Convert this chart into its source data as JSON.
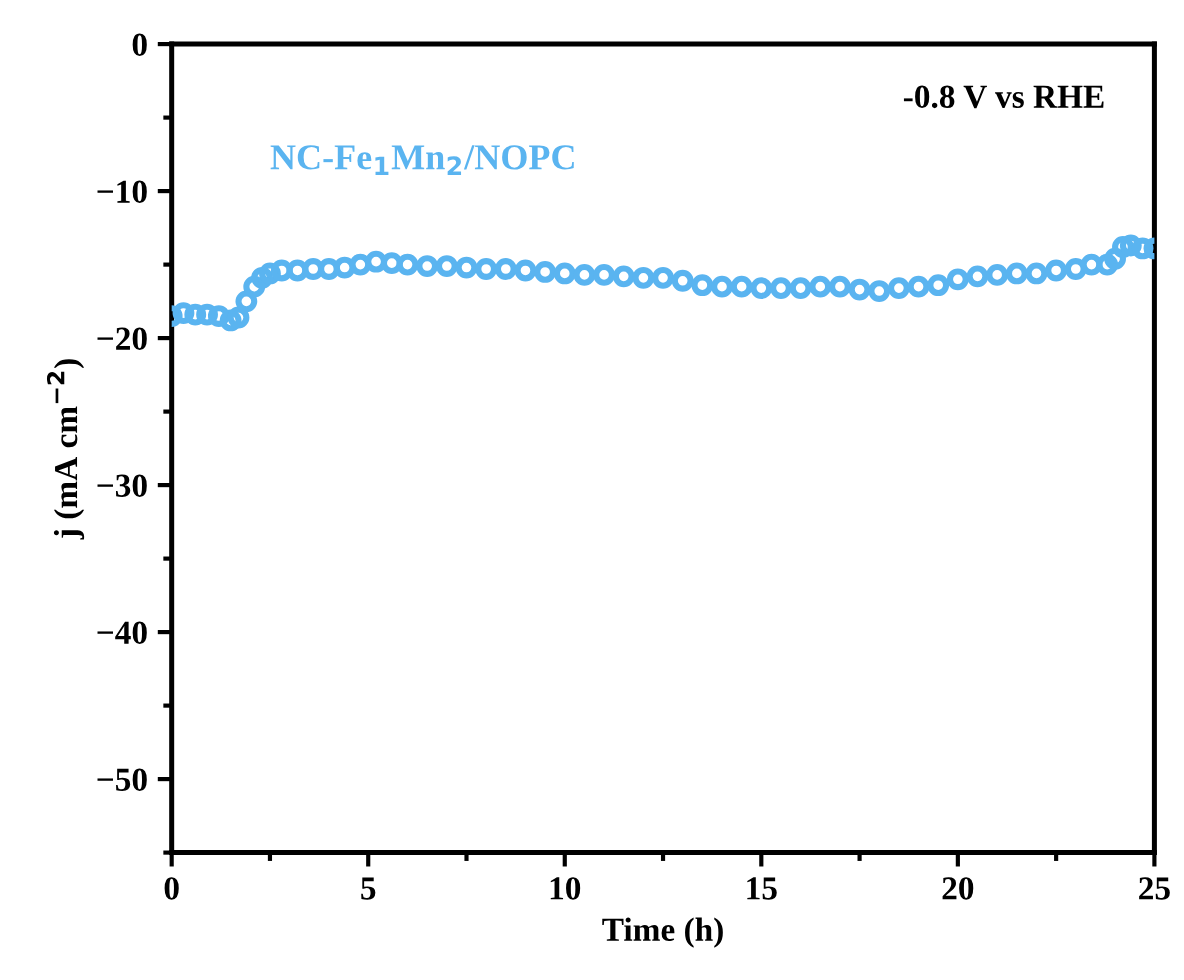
{
  "chart_data": {
    "type": "scatter",
    "xlabel": "Time (h)",
    "ylabel": "j (mA cm$^{−2}$)",
    "xlim": [
      0,
      25
    ],
    "ylim": [
      -55,
      0
    ],
    "xticks": [
      0,
      5,
      10,
      15,
      20,
      25
    ],
    "yticks": [
      0,
      -10,
      -20,
      -30,
      -40,
      -50
    ],
    "marker": "circle",
    "grid": false,
    "annotations": [
      "-0.8 V vs RHE"
    ],
    "series": [
      {
        "name": "NC-Fe$_{1}$Mn$_{2}$/NOPC",
        "color": "#5ab4f0",
        "x": [
          0,
          0.3,
          0.6,
          0.9,
          1.2,
          1.5,
          1.7,
          1.9,
          2.1,
          2.3,
          2.5,
          2.8,
          3.2,
          3.6,
          4.0,
          4.4,
          4.8,
          5.2,
          5.6,
          6.0,
          6.5,
          7.0,
          7.5,
          8.0,
          8.5,
          9.0,
          9.5,
          10.0,
          10.5,
          11.0,
          11.5,
          12.0,
          12.5,
          13.0,
          13.5,
          14.0,
          14.5,
          15.0,
          15.5,
          16.0,
          16.5,
          17.0,
          17.5,
          18.0,
          18.5,
          19.0,
          19.5,
          20.0,
          20.5,
          21.0,
          21.5,
          22.0,
          22.5,
          23.0,
          23.4,
          23.8,
          24.0,
          24.2,
          24.4,
          24.7,
          25.0
        ],
        "values": [
          -18.5,
          -18.3,
          -18.4,
          -18.4,
          -18.5,
          -18.8,
          -18.6,
          -17.5,
          -16.5,
          -15.9,
          -15.6,
          -15.4,
          -15.4,
          -15.3,
          -15.3,
          -15.2,
          -15.0,
          -14.8,
          -14.9,
          -15.0,
          -15.1,
          -15.1,
          -15.2,
          -15.3,
          -15.3,
          -15.4,
          -15.5,
          -15.6,
          -15.7,
          -15.7,
          -15.8,
          -15.9,
          -15.9,
          -16.1,
          -16.4,
          -16.5,
          -16.5,
          -16.6,
          -16.6,
          -16.6,
          -16.5,
          -16.5,
          -16.7,
          -16.8,
          -16.6,
          -16.5,
          -16.4,
          -16.0,
          -15.8,
          -15.7,
          -15.6,
          -15.6,
          -15.4,
          -15.3,
          -15.0,
          -15.0,
          -14.6,
          -13.8,
          -13.7,
          -13.9,
          -13.9
        ]
      }
    ]
  }
}
